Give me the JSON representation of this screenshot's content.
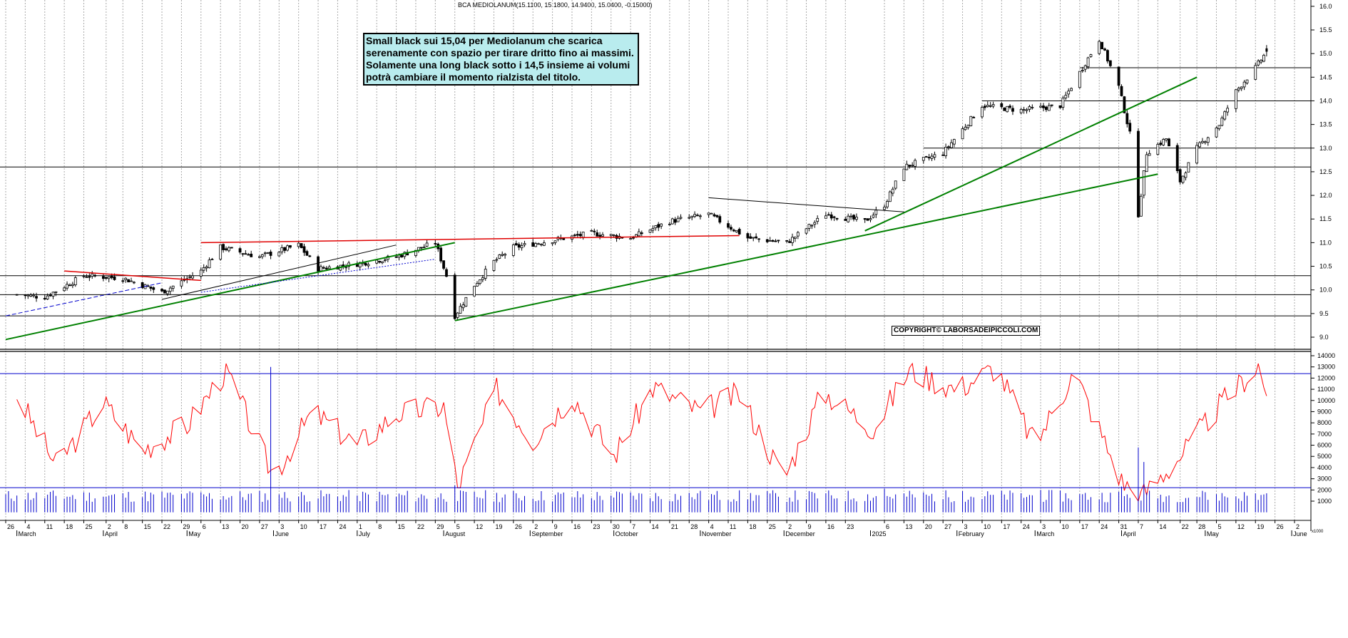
{
  "header": {
    "title": "BCA MEDIOLANUM(15.1100, 15.1800, 14.9400, 15.0400, -0.15000)"
  },
  "annotation": {
    "text": "Small black sui 15,04 per Mediolanum che scarica serenamente con spazio per tirare dritto fino ai massimi. Solamente una long black sotto i 14,5 insieme ai volumi potrà cambiare il momento rialzista del titolo."
  },
  "copyright": "COPYRIGHT© LABORSADEIPICCOLI.COM",
  "volume_unit_label": "x1000",
  "colors": {
    "candle": "#000000",
    "support_trend": "#008000",
    "resistance_trend": "#e00000",
    "volume": "#0000cc",
    "oscillator": "#ff0000",
    "horizontal_levels": "#000000"
  },
  "chart_data": [
    {
      "type": "candlestick",
      "title": "BCA MEDIOLANUM(15.1100, 15.1800, 14.9400, 15.0400, -0.15000)",
      "ylim": [
        8.7,
        16.1
      ],
      "price_ticks": [
        16.0,
        15.5,
        15.0,
        14.5,
        14.0,
        13.5,
        13.0,
        12.5,
        12.0,
        11.5,
        11.0,
        10.5,
        10.0,
        9.5,
        9.0
      ],
      "last_bar": {
        "open": 15.11,
        "high": 15.18,
        "low": 14.94,
        "close": 15.04,
        "change": -0.15
      },
      "horizontal_levels": [
        14.7,
        14.0,
        13.0,
        12.6,
        10.3,
        9.9,
        9.45
      ],
      "close_path": [
        [
          "2024-03-01",
          9.9
        ],
        [
          "2024-03-11",
          9.85
        ],
        [
          "2024-03-25",
          10.3
        ],
        [
          "2024-04-08",
          10.25
        ],
        [
          "2024-04-22",
          9.95
        ],
        [
          "2024-05-06",
          10.4
        ],
        [
          "2024-05-13",
          10.9
        ],
        [
          "2024-05-27",
          10.7
        ],
        [
          "2024-06-10",
          10.95
        ],
        [
          "2024-06-17",
          10.45
        ],
        [
          "2024-07-01",
          10.55
        ],
        [
          "2024-07-15",
          10.7
        ],
        [
          "2024-07-29",
          11.0
        ],
        [
          "2024-08-02",
          10.3
        ],
        [
          "2024-08-05",
          9.45
        ],
        [
          "2024-08-12",
          10.1
        ],
        [
          "2024-08-19",
          10.6
        ],
        [
          "2024-08-26",
          10.9
        ],
        [
          "2024-09-09",
          11.05
        ],
        [
          "2024-09-23",
          11.2
        ],
        [
          "2024-10-07",
          11.1
        ],
        [
          "2024-10-21",
          11.45
        ],
        [
          "2024-11-04",
          11.6
        ],
        [
          "2024-11-18",
          11.1
        ],
        [
          "2024-12-02",
          11.0
        ],
        [
          "2024-12-16",
          11.6
        ],
        [
          "2024-12-30",
          11.45
        ],
        [
          "2025-01-06",
          11.8
        ],
        [
          "2025-01-13",
          12.6
        ],
        [
          "2025-01-27",
          12.9
        ],
        [
          "2025-02-10",
          13.9
        ],
        [
          "2025-02-24",
          13.8
        ],
        [
          "2025-03-10",
          13.9
        ],
        [
          "2025-03-24",
          15.3
        ],
        [
          "2025-03-31",
          14.3
        ],
        [
          "2025-04-04",
          13.3
        ],
        [
          "2025-04-07",
          11.6
        ],
        [
          "2025-04-10",
          12.9
        ],
        [
          "2025-04-17",
          13.2
        ],
        [
          "2025-04-22",
          12.3
        ],
        [
          "2025-04-28",
          13.0
        ],
        [
          "2025-05-06",
          13.5
        ],
        [
          "2025-05-12",
          14.2
        ],
        [
          "2025-05-19",
          14.7
        ],
        [
          "2025-05-23",
          15.04
        ]
      ],
      "trendlines": [
        {
          "color": "green",
          "from": [
            "2024-02-26",
            8.95
          ],
          "to": [
            "2024-08-05",
            11.0
          ]
        },
        {
          "color": "green",
          "from": [
            "2024-08-05",
            9.35
          ],
          "to": [
            "2025-04-14",
            12.45
          ]
        },
        {
          "color": "green",
          "from": [
            "2024-12-30",
            11.25
          ],
          "to": [
            "2025-04-28",
            14.5
          ]
        },
        {
          "color": "red",
          "from": [
            "2024-05-06",
            11.0
          ],
          "to": [
            "2024-11-15",
            11.15
          ]
        },
        {
          "color": "red",
          "from": [
            "2024-03-18",
            10.4
          ],
          "to": [
            "2024-05-06",
            10.2
          ]
        },
        {
          "color": "black",
          "from": [
            "2024-11-04",
            11.95
          ],
          "to": [
            "2025-01-13",
            11.65
          ]
        },
        {
          "color": "black",
          "from": [
            "2024-04-22",
            9.8
          ],
          "to": [
            "2024-07-15",
            10.95
          ]
        }
      ]
    },
    {
      "type": "line",
      "name": "oscillator",
      "ylim": [
        0,
        14000
      ],
      "yticks": [
        14000,
        13000,
        12000,
        11000,
        10000,
        9000,
        8000,
        7000,
        6000,
        5000,
        4000,
        3000,
        2000,
        1000
      ],
      "reference_level": 12400,
      "x": [
        "2024-03-01",
        "2024-03-15",
        "2024-04-01",
        "2024-04-15",
        "2024-05-01",
        "2024-05-15",
        "2024-06-01",
        "2024-06-15",
        "2024-07-01",
        "2024-07-15",
        "2024-08-01",
        "2024-08-06",
        "2024-08-20",
        "2024-09-02",
        "2024-09-16",
        "2024-10-01",
        "2024-10-15",
        "2024-11-01",
        "2024-11-15",
        "2024-12-01",
        "2024-12-15",
        "2025-01-02",
        "2025-01-15",
        "2025-02-01",
        "2025-02-15",
        "2025-03-01",
        "2025-03-15",
        "2025-04-01",
        "2025-04-08",
        "2025-04-22",
        "2025-05-06",
        "2025-05-20",
        "2025-05-23"
      ],
      "values": [
        10500,
        4200,
        9800,
        5600,
        7800,
        12700,
        3200,
        9000,
        6000,
        8800,
        9500,
        2200,
        11000,
        6500,
        10500,
        5000,
        11200,
        9000,
        10600,
        3000,
        10800,
        7500,
        12700,
        11000,
        13000,
        6000,
        12600,
        2800,
        1400,
        5000,
        9500,
        13200,
        10400
      ]
    },
    {
      "type": "bar",
      "name": "volume",
      "ylim": [
        0,
        14000
      ],
      "reference_level": 2200,
      "x": [
        "2024-03-01",
        "2024-04-01",
        "2024-05-01",
        "2024-05-31",
        "2024-06-03",
        "2024-07-01",
        "2024-08-05",
        "2024-09-01",
        "2024-09-30",
        "2024-10-31",
        "2024-11-29",
        "2025-01-06",
        "2025-02-03",
        "2025-03-03",
        "2025-04-01",
        "2025-04-07",
        "2025-04-09",
        "2025-05-01",
        "2025-05-23"
      ],
      "values": [
        1500,
        1400,
        1700,
        13000,
        1600,
        1500,
        2400,
        1400,
        1500,
        1700,
        1400,
        2100,
        1900,
        2000,
        2300,
        5800,
        4500,
        1800,
        1700
      ]
    }
  ],
  "xaxis": {
    "ticks": [
      {
        "d": "2024-02-26",
        "t": "26"
      },
      {
        "d": "2024-03-04",
        "t": "4"
      },
      {
        "d": "2024-03-11",
        "t": "11"
      },
      {
        "d": "2024-03-18",
        "t": "18"
      },
      {
        "d": "2024-03-25",
        "t": "25"
      },
      {
        "d": "2024-04-02",
        "t": "2"
      },
      {
        "d": "2024-04-08",
        "t": "8"
      },
      {
        "d": "2024-04-15",
        "t": "15"
      },
      {
        "d": "2024-04-22",
        "t": "22"
      },
      {
        "d": "2024-04-29",
        "t": "29"
      },
      {
        "d": "2024-05-06",
        "t": "6"
      },
      {
        "d": "2024-05-13",
        "t": "13"
      },
      {
        "d": "2024-05-20",
        "t": "20"
      },
      {
        "d": "2024-05-27",
        "t": "27"
      },
      {
        "d": "2024-06-03",
        "t": "3"
      },
      {
        "d": "2024-06-10",
        "t": "10"
      },
      {
        "d": "2024-06-17",
        "t": "17"
      },
      {
        "d": "2024-06-24",
        "t": "24"
      },
      {
        "d": "2024-07-01",
        "t": "1"
      },
      {
        "d": "2024-07-08",
        "t": "8"
      },
      {
        "d": "2024-07-15",
        "t": "15"
      },
      {
        "d": "2024-07-22",
        "t": "22"
      },
      {
        "d": "2024-07-29",
        "t": "29"
      },
      {
        "d": "2024-08-05",
        "t": "5"
      },
      {
        "d": "2024-08-12",
        "t": "12"
      },
      {
        "d": "2024-08-19",
        "t": "19"
      },
      {
        "d": "2024-08-26",
        "t": "26"
      },
      {
        "d": "2024-09-02",
        "t": "2"
      },
      {
        "d": "2024-09-09",
        "t": "9"
      },
      {
        "d": "2024-09-16",
        "t": "16"
      },
      {
        "d": "2024-09-23",
        "t": "23"
      },
      {
        "d": "2024-09-30",
        "t": "30"
      },
      {
        "d": "2024-10-07",
        "t": "7"
      },
      {
        "d": "2024-10-14",
        "t": "14"
      },
      {
        "d": "2024-10-21",
        "t": "21"
      },
      {
        "d": "2024-10-28",
        "t": "28"
      },
      {
        "d": "2024-11-04",
        "t": "4"
      },
      {
        "d": "2024-11-11",
        "t": "11"
      },
      {
        "d": "2024-11-18",
        "t": "18"
      },
      {
        "d": "2024-11-25",
        "t": "25"
      },
      {
        "d": "2024-12-02",
        "t": "2"
      },
      {
        "d": "2024-12-09",
        "t": "9"
      },
      {
        "d": "2024-12-16",
        "t": "16"
      },
      {
        "d": "2024-12-23",
        "t": "23"
      },
      {
        "d": "2025-01-06",
        "t": "6"
      },
      {
        "d": "2025-01-13",
        "t": "13"
      },
      {
        "d": "2025-01-20",
        "t": "20"
      },
      {
        "d": "2025-01-27",
        "t": "27"
      },
      {
        "d": "2025-02-03",
        "t": "3"
      },
      {
        "d": "2025-02-10",
        "t": "10"
      },
      {
        "d": "2025-02-17",
        "t": "17"
      },
      {
        "d": "2025-02-24",
        "t": "24"
      },
      {
        "d": "2025-03-03",
        "t": "3"
      },
      {
        "d": "2025-03-10",
        "t": "10"
      },
      {
        "d": "2025-03-17",
        "t": "17"
      },
      {
        "d": "2025-03-24",
        "t": "24"
      },
      {
        "d": "2025-03-31",
        "t": "31"
      },
      {
        "d": "2025-04-07",
        "t": "7"
      },
      {
        "d": "2025-04-14",
        "t": "14"
      },
      {
        "d": "2025-04-22",
        "t": "22"
      },
      {
        "d": "2025-04-28",
        "t": "28"
      },
      {
        "d": "2025-05-05",
        "t": "5"
      },
      {
        "d": "2025-05-12",
        "t": "12"
      },
      {
        "d": "2025-05-19",
        "t": "19"
      },
      {
        "d": "2025-05-26",
        "t": "26"
      },
      {
        "d": "2025-06-02",
        "t": "2"
      }
    ],
    "months": [
      {
        "d": "2024-03-01",
        "t": "March"
      },
      {
        "d": "2024-04-01",
        "t": "April"
      },
      {
        "d": "2024-05-01",
        "t": "May"
      },
      {
        "d": "2024-06-01",
        "t": "June"
      },
      {
        "d": "2024-07-01",
        "t": "July"
      },
      {
        "d": "2024-08-01",
        "t": "August"
      },
      {
        "d": "2024-09-01",
        "t": "September"
      },
      {
        "d": "2024-10-01",
        "t": "October"
      },
      {
        "d": "2024-11-01",
        "t": "November"
      },
      {
        "d": "2024-12-01",
        "t": "December"
      },
      {
        "d": "2025-01-01",
        "t": "2025"
      },
      {
        "d": "2025-02-01",
        "t": "February"
      },
      {
        "d": "2025-03-01",
        "t": "March"
      },
      {
        "d": "2025-04-01",
        "t": "April"
      },
      {
        "d": "2025-05-01",
        "t": "May"
      },
      {
        "d": "2025-06-01",
        "t": "June"
      }
    ]
  }
}
